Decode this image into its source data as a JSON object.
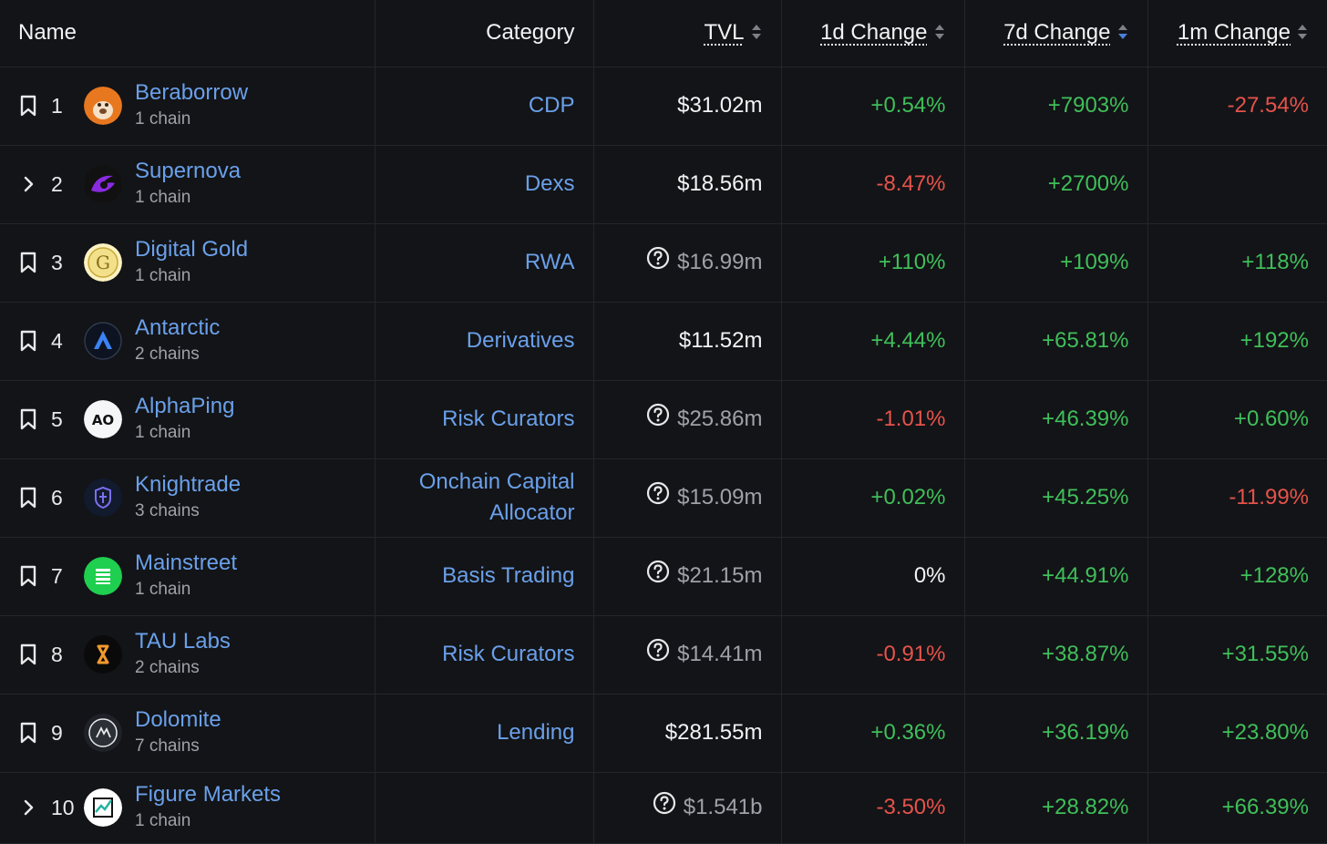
{
  "header": {
    "name": "Name",
    "category": "Category",
    "tvl": "TVL",
    "change_1d": "1d Change",
    "change_7d": "7d Change",
    "change_1m": "1m Change"
  },
  "colors": {
    "link": "#6aa0ea",
    "positive": "#3fbf5a",
    "negative": "#e5534b",
    "sort_active": "#4a7fd8",
    "background": "#131417"
  },
  "rows": [
    {
      "rank": "1",
      "name": "Beraborrow",
      "chains": "1 chain",
      "category": "CDP",
      "tvl": "$31.02m",
      "tvl_unverified": false,
      "d1": "+0.54%",
      "d7": "+7903%",
      "m1": "-27.54%",
      "control": "bookmark-icon",
      "logo": "bear-logo"
    },
    {
      "rank": "2",
      "name": "Supernova",
      "chains": "1 chain",
      "category": "Dexs",
      "tvl": "$18.56m",
      "tvl_unverified": false,
      "d1": "-8.47%",
      "d7": "+2700%",
      "m1": "",
      "control": "chevron-right-icon",
      "logo": "supernova-logo"
    },
    {
      "rank": "3",
      "name": "Digital Gold",
      "chains": "1 chain",
      "category": "RWA",
      "tvl": "$16.99m",
      "tvl_unverified": true,
      "d1": "+110%",
      "d7": "+109%",
      "m1": "+118%",
      "control": "bookmark-icon",
      "logo": "gold-coin-logo"
    },
    {
      "rank": "4",
      "name": "Antarctic",
      "chains": "2 chains",
      "category": "Derivatives",
      "tvl": "$11.52m",
      "tvl_unverified": false,
      "d1": "+4.44%",
      "d7": "+65.81%",
      "m1": "+192%",
      "control": "bookmark-icon",
      "logo": "antarctic-logo"
    },
    {
      "rank": "5",
      "name": "AlphaPing",
      "chains": "1 chain",
      "category": "Risk Curators",
      "tvl": "$25.86m",
      "tvl_unverified": true,
      "d1": "-1.01%",
      "d7": "+46.39%",
      "m1": "+0.60%",
      "control": "bookmark-icon",
      "logo": "alphaping-logo"
    },
    {
      "rank": "6",
      "name": "Knightrade",
      "chains": "3 chains",
      "category_line1": "Onchain Capital",
      "category_line2": "Allocator",
      "tvl": "$15.09m",
      "tvl_unverified": true,
      "d1": "+0.02%",
      "d7": "+45.25%",
      "m1": "-11.99%",
      "control": "bookmark-icon",
      "logo": "shield-logo"
    },
    {
      "rank": "7",
      "name": "Mainstreet",
      "chains": "1 chain",
      "category": "Basis Trading",
      "tvl": "$21.15m",
      "tvl_unverified": true,
      "d1": "0%",
      "d7": "+44.91%",
      "m1": "+128%",
      "control": "bookmark-icon",
      "logo": "mainstreet-logo"
    },
    {
      "rank": "8",
      "name": "TAU Labs",
      "chains": "2 chains",
      "category": "Risk Curators",
      "tvl": "$14.41m",
      "tvl_unverified": true,
      "d1": "-0.91%",
      "d7": "+38.87%",
      "m1": "+31.55%",
      "control": "bookmark-icon",
      "logo": "tau-logo"
    },
    {
      "rank": "9",
      "name": "Dolomite",
      "chains": "7 chains",
      "category": "Lending",
      "tvl": "$281.55m",
      "tvl_unverified": false,
      "d1": "+0.36%",
      "d7": "+36.19%",
      "m1": "+23.80%",
      "control": "bookmark-icon",
      "logo": "dolomite-logo"
    },
    {
      "rank": "10",
      "name": "Figure Markets",
      "chains": "1 chain",
      "category": "",
      "tvl": "$1.541b",
      "tvl_unverified": true,
      "d1": "-3.50%",
      "d7": "+28.82%",
      "m1": "+66.39%",
      "control": "chevron-right-icon",
      "logo": "figure-logo"
    }
  ]
}
